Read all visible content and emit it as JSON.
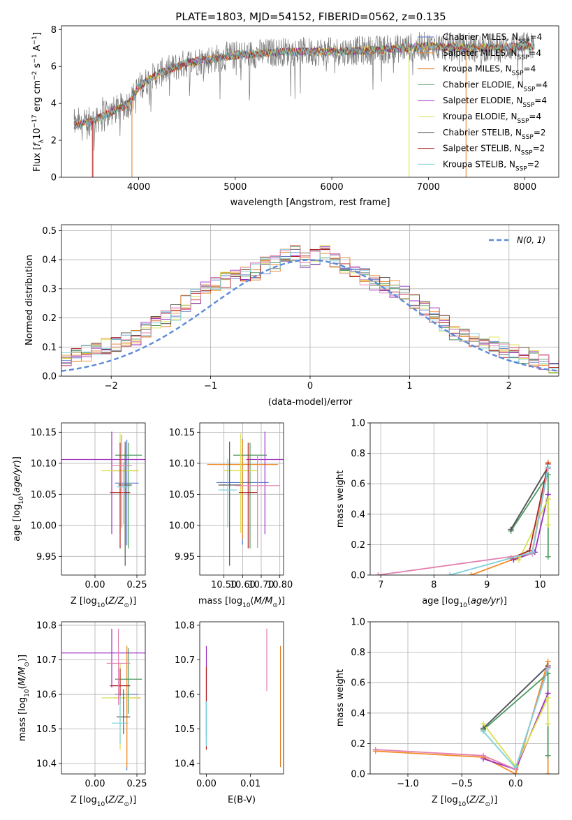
{
  "figure_title": "PLATE=1803, MJD=54152, FIBERID=0562, z=0.135",
  "colors": {
    "c0": "#5778c8",
    "c1": "#f28e2b",
    "c2": "#e07a1f",
    "c3": "#4c9a5f",
    "c4": "#9c2fbf",
    "c5": "#d8e050",
    "c6": "#555555",
    "c7": "#b22222",
    "c8": "#7fd0d8",
    "pink": "#e37fb0",
    "gauss": "#5b8bd9",
    "grid": "#b0b0b0"
  },
  "chart_data": [
    {
      "id": "spectrum",
      "type": "line",
      "title": "PLATE=1803, MJD=54152, FIBERID=0562, z=0.135",
      "xlabel": "wavelength [Angstrom, rest frame]",
      "ylabel": "Flux [fλ10⁻¹⁷ erg cm⁻² s⁻¹ A⁻¹]",
      "xlim": [
        3200,
        8350
      ],
      "ylim": [
        0,
        8.2
      ],
      "xticks": [
        4000,
        5000,
        6000,
        7000,
        8000
      ],
      "yticks": [
        0,
        2,
        4,
        6,
        8
      ],
      "grid": false,
      "legend_position": "top-right",
      "series": [
        {
          "name": "Chabrier MILES, N_SSP=4",
          "label_main": "Chabrier MILES, N",
          "label_sub": "SSP",
          "label_tail": "=4",
          "color_key": "c0"
        },
        {
          "name": "Salpeter MILES, N_SSP=4",
          "label_main": "Salpeter MILES, N",
          "label_sub": "SSP",
          "label_tail": "=4",
          "color_key": "c1"
        },
        {
          "name": "Kroupa MILES, N_SSP=4",
          "label_main": "Kroupa MILES, N",
          "label_sub": "SSP",
          "label_tail": "=4",
          "color_key": "c2"
        },
        {
          "name": "Chabrier ELODIE, N_SSP=4",
          "label_main": "Chabrier ELODIE, N",
          "label_sub": "SSP",
          "label_tail": "=4",
          "color_key": "c3"
        },
        {
          "name": "Salpeter ELODIE, N_SSP=4",
          "label_main": "Salpeter ELODIE, N",
          "label_sub": "SSP",
          "label_tail": "=4",
          "color_key": "c4"
        },
        {
          "name": "Kroupa ELODIE, N_SSP=4",
          "label_main": "Kroupa ELODIE, N",
          "label_sub": "SSP",
          "label_tail": "=4",
          "color_key": "c5"
        },
        {
          "name": "Chabrier STELIB, N_SSP=2",
          "label_main": "Chabrier STELIB, N",
          "label_sub": "SSP",
          "label_tail": "=2",
          "color_key": "c6"
        },
        {
          "name": "Salpeter STELIB, N_SSP=2",
          "label_main": "Salpeter STELIB, N",
          "label_sub": "SSP",
          "label_tail": "=2",
          "color_key": "c7"
        },
        {
          "name": "Kroupa STELIB, N_SSP=2",
          "label_main": "Kroupa STELIB, N",
          "label_sub": "SSP",
          "label_tail": "=2",
          "color_key": "c8"
        }
      ],
      "continuum_knots": [
        [
          3330,
          2.8
        ],
        [
          3500,
          3.0
        ],
        [
          3700,
          3.5
        ],
        [
          3900,
          4.0
        ],
        [
          4000,
          4.9
        ],
        [
          4200,
          5.6
        ],
        [
          4500,
          6.2
        ],
        [
          5000,
          6.6
        ],
        [
          5500,
          6.8
        ],
        [
          6000,
          6.8
        ],
        [
          6500,
          6.9
        ],
        [
          7000,
          7.1
        ],
        [
          7500,
          7.0
        ],
        [
          8100,
          7.1
        ]
      ]
    },
    {
      "id": "residual_hist",
      "type": "histogram",
      "xlabel": "(data-model)/error",
      "ylabel": "Normed distribution",
      "xlim": [
        -2.5,
        2.5
      ],
      "ylim": [
        0,
        0.52
      ],
      "xticks": [
        -2,
        -1,
        0,
        1,
        2
      ],
      "yticks": [
        0.0,
        0.1,
        0.2,
        0.3,
        0.4,
        0.5
      ],
      "grid": true,
      "legend": "N(0, 1)",
      "legend_position": "top-right",
      "bin_width": 0.1,
      "base_bins": [
        0.02,
        0.03,
        0.035,
        0.04,
        0.05,
        0.06,
        0.065,
        0.08,
        0.09,
        0.1,
        0.11,
        0.12,
        0.13,
        0.16,
        0.18,
        0.2,
        0.22,
        0.25,
        0.27,
        0.3,
        0.32,
        0.33,
        0.34,
        0.35,
        0.36,
        0.38,
        0.39,
        0.41,
        0.42,
        0.4,
        0.41,
        0.42,
        0.4,
        0.38,
        0.35,
        0.34,
        0.32,
        0.31,
        0.3,
        0.28,
        0.26,
        0.23,
        0.21,
        0.18,
        0.15,
        0.14,
        0.13,
        0.12,
        0.11,
        0.09,
        0.08,
        0.07,
        0.06,
        0.05,
        0.04,
        0.035,
        0.03,
        0.025,
        0.02,
        0.02
      ]
    },
    {
      "id": "age_vs_Z",
      "type": "scatter",
      "xlabel": "Z [log10(Z/Z⊙)]",
      "ylabel": "age  [log10(age/yr)]",
      "xlim": [
        -0.2,
        0.3
      ],
      "ylim": [
        9.92,
        10.165
      ],
      "xticks": [
        0.0,
        0.25
      ],
      "yticks": [
        9.95,
        10.0,
        10.05,
        10.1,
        10.15
      ],
      "grid": true,
      "points": [
        {
          "x": 0.19,
          "y": 10.068,
          "xerr": 0.07,
          "yerr": [
            0.1,
            0.07
          ],
          "color_key": "c0"
        },
        {
          "x": 0.18,
          "y": 10.088,
          "xerr": 0.08,
          "yerr": [
            0.12,
            0.04
          ],
          "color_key": "c1"
        },
        {
          "x": 0.2,
          "y": 10.113,
          "xerr": 0.08,
          "yerr": [
            0.15,
            0.02
          ],
          "color_key": "c3"
        },
        {
          "x": 0.1,
          "y": 10.106,
          "xerr": 0.3,
          "yerr": [
            0.12,
            0.045
          ],
          "color_key": "c4"
        },
        {
          "x": 0.15,
          "y": 10.088,
          "xerr": 0.11,
          "yerr": [
            0.1,
            0.06
          ],
          "color_key": "c5"
        },
        {
          "x": 0.18,
          "y": 10.065,
          "xerr": 0.04,
          "yerr": [
            0.13,
            0.07
          ],
          "color_key": "c6"
        },
        {
          "x": 0.15,
          "y": 10.053,
          "xerr": 0.06,
          "yerr": [
            0.09,
            0.08
          ],
          "color_key": "c7"
        },
        {
          "x": 0.16,
          "y": 10.096,
          "xerr": 0.06,
          "yerr": [
            0.1,
            0.05
          ],
          "color_key": "pink"
        },
        {
          "x": 0.17,
          "y": 10.062,
          "xerr": 0.04,
          "yerr": [
            0.06,
            0.04
          ],
          "color_key": "c8"
        }
      ]
    },
    {
      "id": "age_vs_mass",
      "type": "scatter",
      "xlabel": "mass [log10(M/M⊙)]",
      "ylabel": "",
      "xlim": [
        10.37,
        10.82
      ],
      "ylim": [
        9.92,
        10.165
      ],
      "xticks": [
        10.5,
        10.6,
        10.7,
        10.8
      ],
      "yticks": [
        9.95,
        10.0,
        10.05,
        10.1,
        10.15
      ],
      "grid": true,
      "points": [
        {
          "x": 10.6,
          "y": 10.069,
          "xerr": 0.14,
          "yerr": [
            0.1,
            0.07
          ],
          "color_key": "c0"
        },
        {
          "x": 10.6,
          "y": 10.098,
          "xerr": 0.19,
          "yerr": [
            0.12,
            0.04
          ],
          "color_key": "c1"
        },
        {
          "x": 10.64,
          "y": 10.113,
          "xerr": 0.09,
          "yerr": [
            0.15,
            0.02
          ],
          "color_key": "c3"
        },
        {
          "x": 10.72,
          "y": 10.106,
          "xerr": 0.1,
          "yerr": [
            0.12,
            0.045
          ],
          "color_key": "c4"
        },
        {
          "x": 10.59,
          "y": 10.088,
          "xerr": 0.09,
          "yerr": [
            0.1,
            0.06
          ],
          "color_key": "c5"
        },
        {
          "x": 10.53,
          "y": 10.065,
          "xerr": 0.06,
          "yerr": [
            0.13,
            0.07
          ],
          "color_key": "c6"
        },
        {
          "x": 10.63,
          "y": 10.053,
          "xerr": 0.05,
          "yerr": [
            0.09,
            0.08
          ],
          "color_key": "c7"
        },
        {
          "x": 10.68,
          "y": 10.064,
          "xerr": 0.12,
          "yerr": [
            0.1,
            0.05
          ],
          "color_key": "pink"
        },
        {
          "x": 10.52,
          "y": 10.057,
          "xerr": 0.05,
          "yerr": [
            0.06,
            0.05
          ],
          "color_key": "c8"
        }
      ]
    },
    {
      "id": "mass_weight_vs_age",
      "type": "line",
      "xlabel": "age  [log10(age/yr)]",
      "ylabel": "mass weight",
      "xlim": [
        6.8,
        10.35
      ],
      "ylim": [
        0,
        1.0
      ],
      "xticks": [
        7,
        8,
        9,
        10
      ],
      "yticks": [
        0.0,
        0.2,
        0.4,
        0.6,
        0.8,
        1.0
      ],
      "grid": true,
      "series": [
        {
          "color_key": "c0",
          "x": [
            9.45,
            10.15
          ],
          "y": [
            0.3,
            0.71
          ]
        },
        {
          "color_key": "c1",
          "x": [
            8.7,
            9.85,
            10.15
          ],
          "y": [
            0.0,
            0.15,
            0.74
          ]
        },
        {
          "color_key": "c3",
          "x": [
            9.45,
            10.15,
            10.15
          ],
          "y": [
            0.29,
            0.66,
            0.12
          ]
        },
        {
          "color_key": "c4",
          "x": [
            9.5,
            9.9,
            10.15
          ],
          "y": [
            0.1,
            0.15,
            0.53
          ]
        },
        {
          "color_key": "c5",
          "x": [
            9.6,
            10.15,
            10.15
          ],
          "y": [
            0.1,
            0.5,
            0.33
          ]
        },
        {
          "color_key": "c6",
          "x": [
            9.45,
            10.15
          ],
          "y": [
            0.3,
            0.71
          ]
        },
        {
          "color_key": "c7",
          "x": [
            9.45,
            9.8,
            10.15
          ],
          "y": [
            0.11,
            0.16,
            0.73
          ]
        },
        {
          "color_key": "pink",
          "x": [
            6.95,
            9.85,
            10.15
          ],
          "y": [
            0.0,
            0.14,
            0.7
          ]
        },
        {
          "color_key": "c8",
          "x": [
            8.3,
            9.85,
            10.15
          ],
          "y": [
            0.0,
            0.15,
            0.71
          ]
        }
      ]
    },
    {
      "id": "mass_vs_Z",
      "type": "scatter",
      "xlabel": "Z [log10(Z/Z⊙)]",
      "ylabel": "mass [log10(M/M⊙)]",
      "xlim": [
        -0.2,
        0.3
      ],
      "ylim": [
        10.37,
        10.81
      ],
      "xticks": [
        0.0,
        0.25
      ],
      "yticks": [
        10.4,
        10.5,
        10.6,
        10.7,
        10.8
      ],
      "grid": true,
      "points": [
        {
          "x": 0.19,
          "y": 10.6,
          "xerr": 0.07,
          "yerr": [
            0.22,
            0.14
          ],
          "color_key": "c0"
        },
        {
          "x": 0.19,
          "y": 10.59,
          "xerr": 0.08,
          "yerr": [
            0.2,
            0.15
          ],
          "color_key": "c1"
        },
        {
          "x": 0.2,
          "y": 10.644,
          "xerr": 0.08,
          "yerr": [
            0.1,
            0.09
          ],
          "color_key": "c3"
        },
        {
          "x": 0.1,
          "y": 10.72,
          "xerr": 0.3,
          "yerr": [
            0.1,
            0.07
          ],
          "color_key": "c4"
        },
        {
          "x": 0.15,
          "y": 10.59,
          "xerr": 0.11,
          "yerr": [
            0.15,
            0.1
          ],
          "color_key": "c5"
        },
        {
          "x": 0.17,
          "y": 10.535,
          "xerr": 0.04,
          "yerr": [
            0.05,
            0.08
          ],
          "color_key": "c6"
        },
        {
          "x": 0.15,
          "y": 10.625,
          "xerr": 0.06,
          "yerr": [
            0.05,
            0.05
          ],
          "color_key": "c7"
        },
        {
          "x": 0.14,
          "y": 10.69,
          "xerr": 0.07,
          "yerr": [
            0.12,
            0.1
          ],
          "color_key": "pink"
        },
        {
          "x": 0.15,
          "y": 10.517,
          "xerr": 0.05,
          "yerr": [
            0.06,
            0.08
          ],
          "color_key": "c8"
        }
      ]
    },
    {
      "id": "mass_vs_ebv",
      "type": "scatter",
      "xlabel": "E(B-V)",
      "ylabel": "",
      "xlim": [
        -0.0015,
        0.0175
      ],
      "ylim": [
        10.37,
        10.81
      ],
      "xticks": [
        0.0,
        0.01
      ],
      "yticks": [
        10.4,
        10.5,
        10.6,
        10.7,
        10.8
      ],
      "grid": false,
      "points": [
        {
          "x": 0.0,
          "y": 10.6,
          "yerr": [
            0.12,
            0.14
          ],
          "color_key": "c4"
        },
        {
          "x": 0.0,
          "y": 10.58,
          "yerr": [
            0.14,
            0.1
          ],
          "color_key": "c7"
        },
        {
          "x": 0.0,
          "y": 10.52,
          "yerr": [
            0.07,
            0.06
          ],
          "color_key": "c8"
        },
        {
          "x": 0.0137,
          "y": 10.7,
          "yerr": [
            0.09,
            0.09
          ],
          "color_key": "pink"
        },
        {
          "x": 0.0168,
          "y": 10.56,
          "yerr": [
            0.17,
            0.18
          ],
          "color_key": "c2"
        }
      ]
    },
    {
      "id": "mass_weight_vs_Z",
      "type": "line",
      "xlabel": "Z [log10(Z/Z⊙)]",
      "ylabel": "mass weight",
      "xlim": [
        -1.35,
        0.4
      ],
      "ylim": [
        0,
        1.0
      ],
      "xticks": [
        -1.0,
        -0.5,
        0.0
      ],
      "yticks": [
        0.0,
        0.2,
        0.4,
        0.6,
        0.8,
        1.0
      ],
      "grid": true,
      "series": [
        {
          "color_key": "c0",
          "x": [
            -0.3,
            0.3
          ],
          "y": [
            0.3,
            0.71
          ]
        },
        {
          "color_key": "c1",
          "x": [
            -1.3,
            -0.3,
            0.0,
            0.3,
            0.3
          ],
          "y": [
            0.15,
            0.11,
            0.0,
            0.74,
            0.0
          ]
        },
        {
          "color_key": "c3",
          "x": [
            -0.3,
            0.3,
            0.3
          ],
          "y": [
            0.29,
            0.66,
            0.12
          ]
        },
        {
          "color_key": "c4",
          "x": [
            -0.3,
            0.0,
            0.3
          ],
          "y": [
            0.1,
            0.03,
            0.53
          ]
        },
        {
          "color_key": "c5",
          "x": [
            -0.3,
            0.0,
            0.3,
            0.3
          ],
          "y": [
            0.33,
            0.05,
            0.5,
            0.33
          ]
        },
        {
          "color_key": "c6",
          "x": [
            -0.3,
            0.3
          ],
          "y": [
            0.3,
            0.71
          ]
        },
        {
          "color_key": "pink",
          "x": [
            -1.3,
            -0.3,
            0.0,
            0.3
          ],
          "y": [
            0.16,
            0.12,
            0.03,
            0.7
          ]
        },
        {
          "color_key": "c8",
          "x": [
            -0.3,
            0.0,
            0.3
          ],
          "y": [
            0.28,
            0.04,
            0.69
          ]
        }
      ]
    }
  ]
}
